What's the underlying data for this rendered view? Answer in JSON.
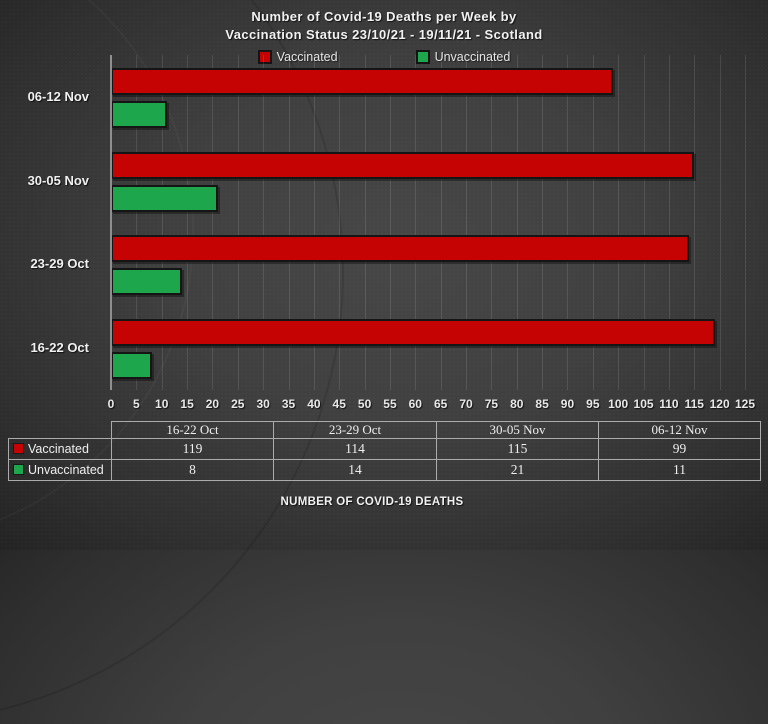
{
  "title": {
    "line1": "Number of Covid-19 Deaths per Week by",
    "line2": "Vaccination Status 23/10/21 - 19/11/21 - Scotland"
  },
  "legend": {
    "items": [
      {
        "label": "Vaccinated",
        "color": "#C50303"
      },
      {
        "label": "Unvaccinated",
        "color": "#1DA64C"
      }
    ]
  },
  "chart_data": {
    "type": "bar",
    "orientation": "horizontal",
    "title": "Number of Covid-19 Deaths per Week by Vaccination Status 23/10/21 - 19/11/21 - Scotland",
    "xlabel": "NUMBER OF COVID-19 DEATHS",
    "ylabel": "",
    "categories": [
      "16-22 Oct",
      "23-29 Oct",
      "30-05 Nov",
      "06-12 Nov"
    ],
    "display_order_top_to_bottom": [
      "06-12 Nov",
      "30-05 Nov",
      "23-29 Oct",
      "16-22 Oct"
    ],
    "series": [
      {
        "name": "Vaccinated",
        "color": "#C50303",
        "values": [
          119,
          114,
          115,
          99
        ]
      },
      {
        "name": "Unvaccinated",
        "color": "#1DA64C",
        "values": [
          8,
          14,
          21,
          11
        ]
      }
    ],
    "xlim": [
      0,
      125
    ],
    "xticks": [
      0,
      5,
      10,
      15,
      20,
      25,
      30,
      35,
      40,
      45,
      50,
      55,
      60,
      65,
      70,
      75,
      80,
      85,
      90,
      95,
      100,
      105,
      110,
      115,
      120,
      125
    ],
    "grid": "vertical",
    "legend_position": "top"
  },
  "table": {
    "column_headers": [
      "16-22 Oct",
      "23-29 Oct",
      "30-05 Nov",
      "06-12 Nov"
    ],
    "rows": [
      {
        "label": "Vaccinated",
        "color": "#C50303",
        "values": [
          "119",
          "114",
          "115",
          "99"
        ]
      },
      {
        "label": "Unvaccinated",
        "color": "#1DA64C",
        "values": [
          "8",
          "14",
          "21",
          "11"
        ]
      }
    ]
  },
  "footer": {
    "axis_title": "NUMBER OF COVID-19 DEATHS"
  }
}
